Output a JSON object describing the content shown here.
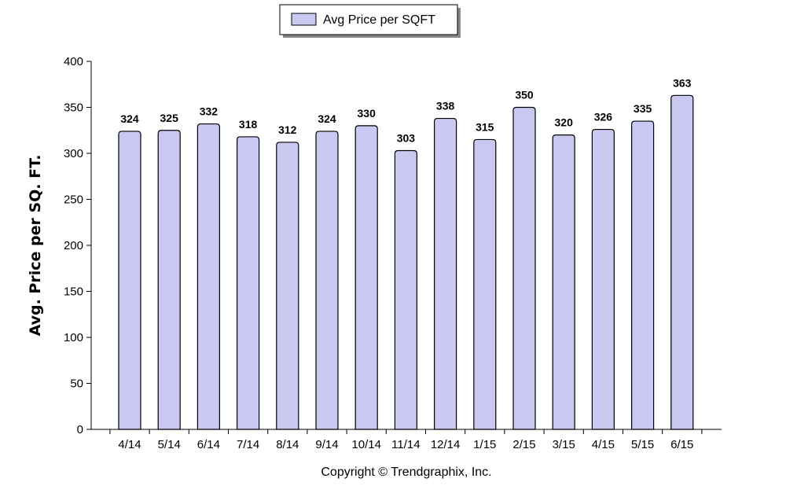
{
  "chart_data": {
    "type": "bar",
    "categories": [
      "4/14",
      "5/14",
      "6/14",
      "7/14",
      "8/14",
      "9/14",
      "10/14",
      "11/14",
      "12/14",
      "1/15",
      "2/15",
      "3/15",
      "4/15",
      "5/15",
      "6/15"
    ],
    "series": [
      {
        "name": "Avg Price per SQFT",
        "values": [
          324,
          325,
          332,
          318,
          312,
          324,
          330,
          303,
          338,
          315,
          350,
          320,
          326,
          335,
          363
        ]
      }
    ],
    "xlabel": "",
    "ylabel": "Avg. Price per SQ. FT.",
    "ylim": [
      0,
      400
    ],
    "yticks": [
      0,
      50,
      100,
      150,
      200,
      250,
      300,
      350,
      400
    ],
    "grid": false,
    "legend_position": "top-center",
    "bar_color": "#c8c8f0",
    "bar_edge_color": "#000000"
  },
  "footer": {
    "copyright": "Copyright © Trendgraphix, Inc."
  }
}
